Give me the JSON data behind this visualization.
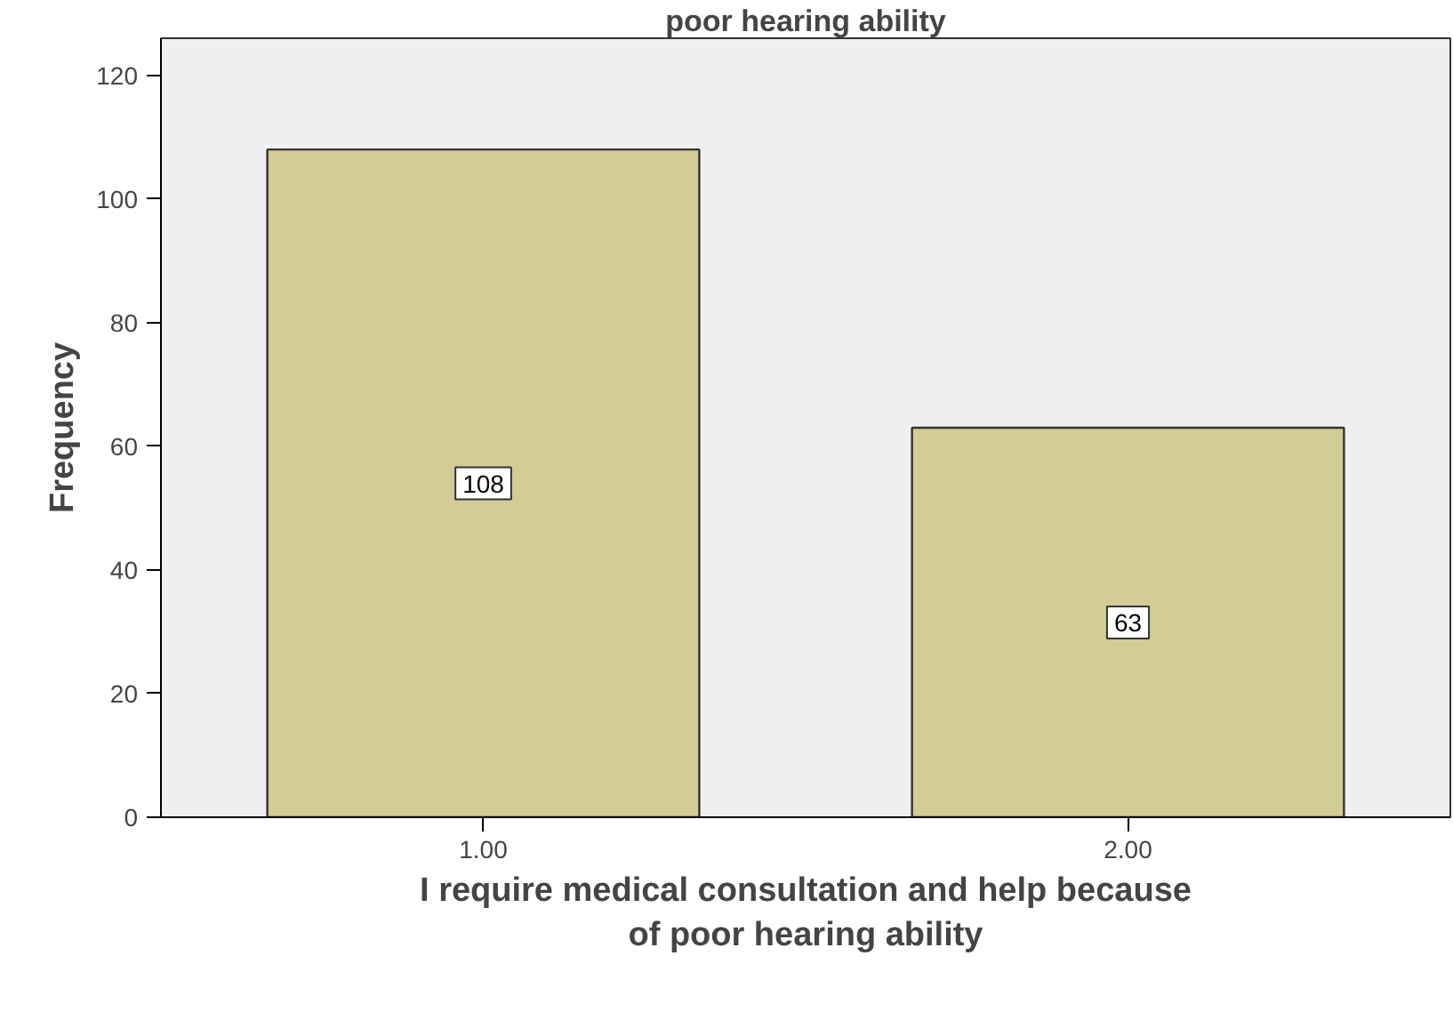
{
  "chart_data": {
    "type": "bar",
    "title": "poor hearing ability",
    "xlabel": "I require medical consultation and help because\nof poor hearing ability",
    "ylabel": "Frequency",
    "categories": [
      "1.00",
      "2.00"
    ],
    "values": [
      108,
      63
    ],
    "color": "#d2cc96",
    "ylim": [
      0,
      126
    ],
    "yticks": [
      0,
      20,
      40,
      60,
      80,
      100,
      120
    ],
    "grid": false,
    "data_labels": true
  }
}
